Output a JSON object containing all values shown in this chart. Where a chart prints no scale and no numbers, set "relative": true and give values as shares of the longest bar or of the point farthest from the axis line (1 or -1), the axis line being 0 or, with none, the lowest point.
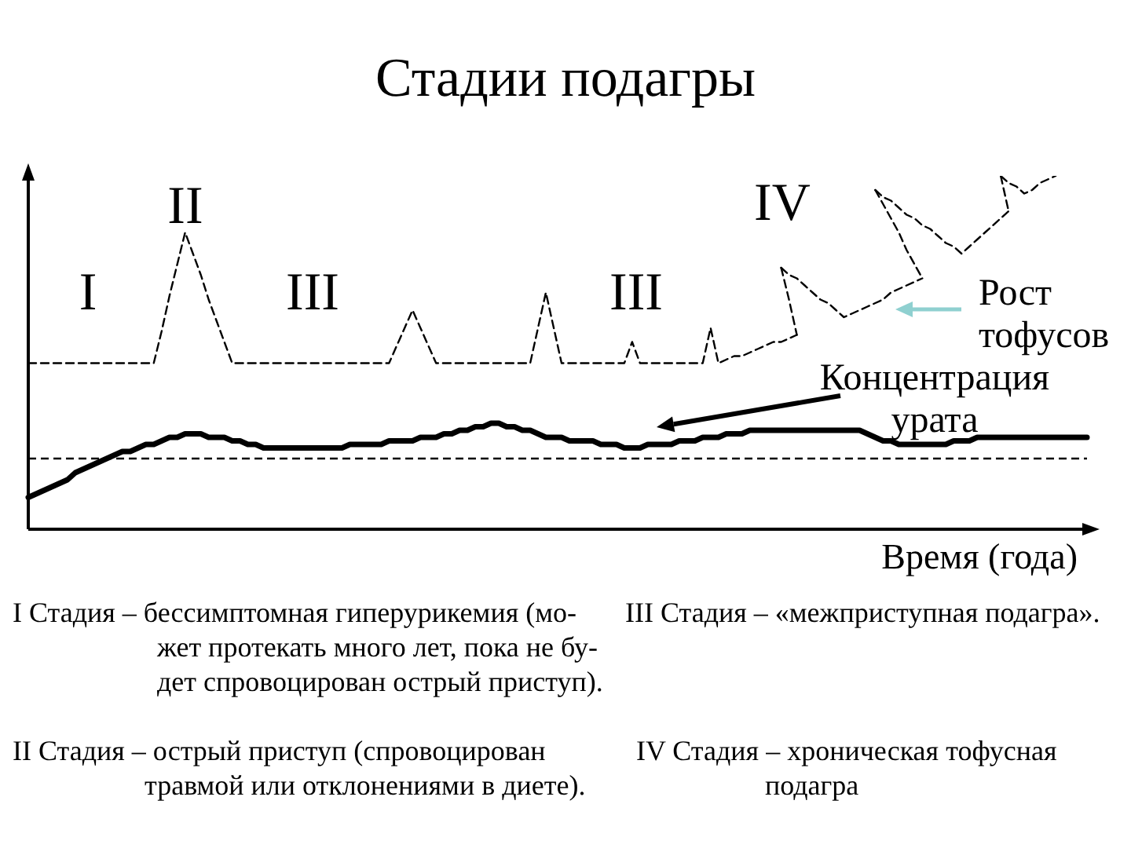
{
  "chart_data": {
    "type": "line",
    "title": "Стадии подагры",
    "xlabel": "Время (года)",
    "relative": true,
    "marker": "none",
    "categories": [
      null,
      null,
      null,
      null,
      null,
      null,
      null,
      null,
      null,
      null,
      null,
      null,
      null,
      null,
      null,
      null,
      null,
      null,
      null,
      null,
      null,
      null,
      null,
      null,
      null,
      null,
      null,
      null,
      null,
      null,
      null,
      null,
      null,
      null,
      null,
      null,
      null,
      null,
      null,
      null,
      null,
      null,
      null,
      null,
      null,
      null,
      null,
      null,
      null,
      null,
      null,
      null,
      null,
      null,
      null,
      null,
      null,
      null,
      null,
      null,
      null,
      null,
      null,
      null,
      null,
      null,
      null,
      null,
      null,
      null,
      null,
      null,
      null,
      null,
      null,
      null,
      null,
      null,
      null,
      null,
      null,
      null,
      null,
      null,
      null,
      null,
      null,
      null,
      null,
      null,
      null,
      null,
      null,
      null,
      null,
      null,
      null,
      null,
      null,
      null,
      null,
      null,
      null,
      null,
      null,
      null,
      null,
      null,
      null,
      null,
      null,
      null,
      null,
      null,
      null,
      null,
      null,
      null,
      null,
      null,
      null,
      null,
      null,
      null,
      null,
      null,
      null,
      null,
      null,
      null,
      null,
      null,
      null,
      null,
      null,
      null
    ],
    "series": [
      {
        "name": "Концентрация урата",
        "color": "#000000",
        "line_style": "solid",
        "values": [
          0.09,
          0.1,
          0.11,
          0.12,
          0.13,
          0.14,
          0.16,
          0.17,
          0.18,
          0.19,
          0.2,
          0.21,
          0.22,
          0.22,
          0.23,
          0.24,
          0.24,
          0.25,
          0.26,
          0.26,
          0.27,
          0.27,
          0.27,
          0.26,
          0.26,
          0.26,
          0.25,
          0.25,
          0.24,
          0.24,
          0.23,
          0.23,
          0.23,
          0.23,
          0.23,
          0.23,
          0.23,
          0.23,
          0.23,
          0.23,
          0.23,
          0.24,
          0.24,
          0.24,
          0.24,
          0.24,
          0.25,
          0.25,
          0.25,
          0.25,
          0.26,
          0.26,
          0.26,
          0.27,
          0.27,
          0.28,
          0.28,
          0.29,
          0.29,
          0.3,
          0.3,
          0.29,
          0.29,
          0.28,
          0.28,
          0.27,
          0.26,
          0.26,
          0.26,
          0.25,
          0.25,
          0.25,
          0.25,
          0.24,
          0.24,
          0.24,
          0.23,
          0.23,
          0.23,
          0.24,
          0.24,
          0.24,
          0.24,
          0.25,
          0.25,
          0.25,
          0.26,
          0.26,
          0.26,
          0.27,
          0.27,
          0.27,
          0.28,
          0.28,
          0.28,
          0.28,
          0.28,
          0.28,
          0.28,
          0.28,
          0.28,
          0.28,
          0.28,
          0.28,
          0.28,
          0.28,
          0.28,
          0.27,
          0.26,
          0.25,
          0.25,
          0.24,
          0.24,
          0.24,
          0.24,
          0.24,
          0.24,
          0.24,
          0.25,
          0.25,
          0.25,
          0.26,
          0.26,
          0.26,
          0.26,
          0.26,
          0.26,
          0.26,
          0.26,
          0.26,
          0.26,
          0.26,
          0.26,
          0.26,
          0.26,
          0.26
        ]
      },
      {
        "color": "#000000",
        "line_style": "dashed",
        "values": [
          0.47,
          0.47,
          0.47,
          0.47,
          0.47,
          0.47,
          0.47,
          0.47,
          0.47,
          0.47,
          0.47,
          0.47,
          0.47,
          0.47,
          0.47,
          0.47,
          0.47,
          0.56,
          0.66,
          0.75,
          0.84,
          0.78,
          0.72,
          0.65,
          0.59,
          0.53,
          0.47,
          0.47,
          0.47,
          0.47,
          0.47,
          0.47,
          0.47,
          0.47,
          0.47,
          0.47,
          0.47,
          0.47,
          0.47,
          0.47,
          0.47,
          0.47,
          0.47,
          0.47,
          0.47,
          0.47,
          0.47,
          0.52,
          0.57,
          0.62,
          0.57,
          0.52,
          0.47,
          0.47,
          0.47,
          0.47,
          0.47,
          0.47,
          0.47,
          0.47,
          0.47,
          0.47,
          0.47,
          0.47,
          0.47,
          0.57,
          0.67,
          0.57,
          0.47,
          0.47,
          0.47,
          0.47,
          0.47,
          0.47,
          0.47,
          0.47,
          0.47,
          0.53,
          0.47,
          0.47,
          0.47,
          0.47,
          0.47,
          0.47,
          0.47,
          0.47,
          0.47,
          0.57,
          0.47,
          0.48,
          0.49,
          0.49,
          0.5,
          0.51,
          0.52,
          0.53,
          0.53,
          0.54,
          0.55,
          null,
          null,
          null,
          null,
          null,
          null,
          null,
          null,
          null,
          null,
          null,
          null,
          null,
          null,
          null,
          null,
          null,
          null,
          null,
          null,
          null,
          null,
          null,
          null,
          null,
          null,
          null,
          null,
          null,
          null,
          null,
          null,
          null,
          null,
          null,
          null,
          null
        ]
      },
      {
        "color": "#000000",
        "line_style": "dashed",
        "values": [
          null,
          null,
          null,
          null,
          null,
          null,
          null,
          null,
          null,
          null,
          null,
          null,
          null,
          null,
          null,
          null,
          null,
          null,
          null,
          null,
          null,
          null,
          null,
          null,
          null,
          null,
          null,
          null,
          null,
          null,
          null,
          null,
          null,
          null,
          null,
          null,
          null,
          null,
          null,
          null,
          null,
          null,
          null,
          null,
          null,
          null,
          null,
          null,
          null,
          null,
          null,
          null,
          null,
          null,
          null,
          null,
          null,
          null,
          null,
          null,
          null,
          null,
          null,
          null,
          null,
          null,
          null,
          null,
          null,
          null,
          null,
          null,
          null,
          null,
          null,
          null,
          null,
          null,
          null,
          null,
          null,
          null,
          null,
          null,
          null,
          null,
          null,
          null,
          null,
          null,
          null,
          null,
          null,
          null,
          null,
          null,
          0.74,
          0.65,
          0.55,
          null,
          null,
          null,
          null,
          null,
          null,
          null,
          null,
          null,
          null,
          null,
          null,
          null,
          null,
          null,
          null,
          null,
          null,
          null,
          null,
          null,
          null,
          null,
          null,
          null,
          null,
          null,
          null,
          null,
          null,
          null,
          null,
          null,
          null,
          null,
          null,
          null
        ]
      },
      {
        "color": "#000000",
        "line_style": "dashed",
        "values": [
          null,
          null,
          null,
          null,
          null,
          null,
          null,
          null,
          null,
          null,
          null,
          null,
          null,
          null,
          null,
          null,
          null,
          null,
          null,
          null,
          null,
          null,
          null,
          null,
          null,
          null,
          null,
          null,
          null,
          null,
          null,
          null,
          null,
          null,
          null,
          null,
          null,
          null,
          null,
          null,
          null,
          null,
          null,
          null,
          null,
          null,
          null,
          null,
          null,
          null,
          null,
          null,
          null,
          null,
          null,
          null,
          null,
          null,
          null,
          null,
          null,
          null,
          null,
          null,
          null,
          null,
          null,
          null,
          null,
          null,
          null,
          null,
          null,
          null,
          null,
          null,
          null,
          null,
          null,
          null,
          null,
          null,
          null,
          null,
          null,
          null,
          null,
          null,
          null,
          null,
          null,
          null,
          null,
          null,
          null,
          null,
          0.74,
          0.72,
          0.71,
          0.69,
          0.67,
          0.65,
          0.64,
          0.62,
          0.6,
          0.61,
          0.62,
          0.63,
          0.64,
          0.65,
          0.67,
          0.68,
          0.69,
          0.7,
          0.71,
          null,
          null,
          null,
          null,
          null,
          null,
          null,
          null,
          null,
          null,
          null,
          null,
          null,
          null,
          null,
          null,
          null,
          null,
          null,
          null,
          null
        ]
      },
      {
        "color": "#000000",
        "line_style": "dashed",
        "values": [
          null,
          null,
          null,
          null,
          null,
          null,
          null,
          null,
          null,
          null,
          null,
          null,
          null,
          null,
          null,
          null,
          null,
          null,
          null,
          null,
          null,
          null,
          null,
          null,
          null,
          null,
          null,
          null,
          null,
          null,
          null,
          null,
          null,
          null,
          null,
          null,
          null,
          null,
          null,
          null,
          null,
          null,
          null,
          null,
          null,
          null,
          null,
          null,
          null,
          null,
          null,
          null,
          null,
          null,
          null,
          null,
          null,
          null,
          null,
          null,
          null,
          null,
          null,
          null,
          null,
          null,
          null,
          null,
          null,
          null,
          null,
          null,
          null,
          null,
          null,
          null,
          null,
          null,
          null,
          null,
          null,
          null,
          null,
          null,
          null,
          null,
          null,
          null,
          null,
          null,
          null,
          null,
          null,
          null,
          null,
          null,
          null,
          null,
          null,
          null,
          null,
          null,
          null,
          null,
          null,
          null,
          null,
          null,
          0.96,
          0.92,
          0.88,
          0.84,
          0.79,
          0.75,
          0.71,
          null,
          null,
          null,
          null,
          null,
          null,
          null,
          null,
          null,
          null,
          null,
          null,
          null,
          null,
          null,
          null,
          null,
          null,
          null,
          null,
          null
        ]
      },
      {
        "color": "#000000",
        "line_style": "dashed",
        "values": [
          null,
          null,
          null,
          null,
          null,
          null,
          null,
          null,
          null,
          null,
          null,
          null,
          null,
          null,
          null,
          null,
          null,
          null,
          null,
          null,
          null,
          null,
          null,
          null,
          null,
          null,
          null,
          null,
          null,
          null,
          null,
          null,
          null,
          null,
          null,
          null,
          null,
          null,
          null,
          null,
          null,
          null,
          null,
          null,
          null,
          null,
          null,
          null,
          null,
          null,
          null,
          null,
          null,
          null,
          null,
          null,
          null,
          null,
          null,
          null,
          null,
          null,
          null,
          null,
          null,
          null,
          null,
          null,
          null,
          null,
          null,
          null,
          null,
          null,
          null,
          null,
          null,
          null,
          null,
          null,
          null,
          null,
          null,
          null,
          null,
          null,
          null,
          null,
          null,
          null,
          null,
          null,
          null,
          null,
          null,
          null,
          null,
          null,
          null,
          null,
          null,
          null,
          null,
          null,
          null,
          null,
          null,
          null,
          0.96,
          0.94,
          0.93,
          0.91,
          0.89,
          0.88,
          0.86,
          0.85,
          0.83,
          0.81,
          0.8,
          0.78,
          0.8,
          0.82,
          0.84,
          0.86,
          0.88,
          0.9,
          null,
          null,
          null,
          null,
          null,
          null,
          null,
          null,
          null,
          null
        ]
      },
      {
        "color": "#000000",
        "line_style": "dashed",
        "values": [
          null,
          null,
          null,
          null,
          null,
          null,
          null,
          null,
          null,
          null,
          null,
          null,
          null,
          null,
          null,
          null,
          null,
          null,
          null,
          null,
          null,
          null,
          null,
          null,
          null,
          null,
          null,
          null,
          null,
          null,
          null,
          null,
          null,
          null,
          null,
          null,
          null,
          null,
          null,
          null,
          null,
          null,
          null,
          null,
          null,
          null,
          null,
          null,
          null,
          null,
          null,
          null,
          null,
          null,
          null,
          null,
          null,
          null,
          null,
          null,
          null,
          null,
          null,
          null,
          null,
          null,
          null,
          null,
          null,
          null,
          null,
          null,
          null,
          null,
          null,
          null,
          null,
          null,
          null,
          null,
          null,
          null,
          null,
          null,
          null,
          null,
          null,
          null,
          null,
          null,
          null,
          null,
          null,
          null,
          null,
          null,
          null,
          null,
          null,
          null,
          null,
          null,
          null,
          null,
          null,
          null,
          null,
          null,
          null,
          null,
          null,
          null,
          null,
          null,
          null,
          null,
          null,
          null,
          null,
          null,
          null,
          null,
          null,
          null,
          1,
          0.9,
          null,
          null,
          null,
          null,
          null,
          null,
          null,
          null,
          null,
          null
        ]
      },
      {
        "color": "#000000",
        "line_style": "dashed",
        "values": [
          null,
          null,
          null,
          null,
          null,
          null,
          null,
          null,
          null,
          null,
          null,
          null,
          null,
          null,
          null,
          null,
          null,
          null,
          null,
          null,
          null,
          null,
          null,
          null,
          null,
          null,
          null,
          null,
          null,
          null,
          null,
          null,
          null,
          null,
          null,
          null,
          null,
          null,
          null,
          null,
          null,
          null,
          null,
          null,
          null,
          null,
          null,
          null,
          null,
          null,
          null,
          null,
          null,
          null,
          null,
          null,
          null,
          null,
          null,
          null,
          null,
          null,
          null,
          null,
          null,
          null,
          null,
          null,
          null,
          null,
          null,
          null,
          null,
          null,
          null,
          null,
          null,
          null,
          null,
          null,
          null,
          null,
          null,
          null,
          null,
          null,
          null,
          null,
          null,
          null,
          null,
          null,
          null,
          null,
          null,
          null,
          null,
          null,
          null,
          null,
          null,
          null,
          null,
          null,
          null,
          null,
          null,
          null,
          null,
          null,
          null,
          null,
          null,
          null,
          null,
          null,
          null,
          null,
          null,
          null,
          null,
          null,
          null,
          null,
          1,
          0.98,
          0.97,
          0.95,
          0.96,
          0.98,
          0.99,
          1,
          null,
          null,
          null,
          null
        ]
      }
    ],
    "ref_lines": [
      {
        "axis": "y",
        "value": 0.2,
        "color": "#000000",
        "line_style": "dashed"
      }
    ],
    "annotations": [
      "I",
      "II",
      "III",
      "III",
      "IV",
      "Рост тофусов",
      "I Стадия – бессимптомная гиперурикемия (мо-\nжет протекать много лет, пока не бу-\nдет спровоцирован острый приступ).",
      "III Стадия – «межприступная подагра».",
      "II Стадия – острый приступ (спровоцирован\nтравмой или отклонениями в диете).",
      "IV Стадия – хроническая тофусная\nподагра"
    ]
  }
}
